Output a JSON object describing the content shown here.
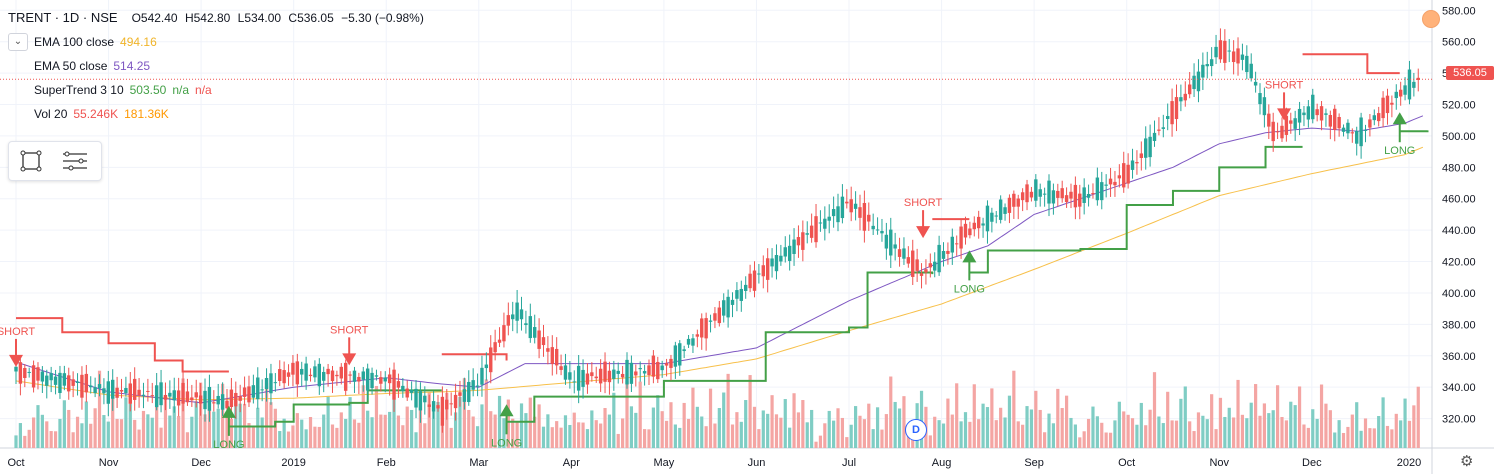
{
  "header": {
    "title": "TRENT · 1D · NSE",
    "ohlc": {
      "o": "O542.40",
      "h": "H542.80",
      "l": "L534.00",
      "c": "C536.05",
      "chg": "−5.30 (−0.98%)"
    }
  },
  "indicators": [
    {
      "label": "EMA 100 close",
      "value": "494.16",
      "color": "#f0b429"
    },
    {
      "label": "EMA 50 close",
      "value": "514.25",
      "color": "#7e57c2"
    },
    {
      "label": "SuperTrend 3 10",
      "value": "503.50",
      "value2": "n/a",
      "value3": "n/a",
      "color": "#43a047",
      "color2": "#ef5350"
    },
    {
      "label": "Vol 20",
      "value": "55.246K",
      "value2": "181.36K",
      "color": "#ef5350",
      "color2": "#ff9800"
    }
  ],
  "colors": {
    "up": "#26a69a",
    "down": "#ef5350",
    "ema100": "#f7c04a",
    "ema50": "#7e57c2",
    "st_up": "#43a047",
    "st_down": "#ef5350",
    "vol_up": "#7fcdc4",
    "vol_down": "#f4a5a3"
  },
  "last_price": "536.05",
  "event_marker": "D",
  "chart_data": {
    "type": "candlestick",
    "y_ticks": [
      "580.00",
      "560.00",
      "540.00",
      "520.00",
      "500.00",
      "480.00",
      "460.00",
      "440.00",
      "420.00",
      "400.00",
      "380.00",
      "360.00",
      "340.00",
      "320.00"
    ],
    "ylim": [
      300,
      584
    ],
    "x_labels": [
      "Oct",
      "Nov",
      "Dec",
      "2019",
      "Feb",
      "Mar",
      "Apr",
      "May",
      "Jun",
      "Jul",
      "Aug",
      "Sep",
      "Oct",
      "Nov",
      "Dec",
      "2020"
    ],
    "x_label_months": [
      0,
      1,
      2,
      3,
      4,
      5,
      6,
      7,
      8,
      9,
      10,
      11,
      12,
      13,
      14,
      15.05
    ],
    "signals": [
      {
        "type": "SHORT",
        "month": 0.0,
        "price": 358
      },
      {
        "type": "LONG",
        "month": 2.3,
        "price": 323
      },
      {
        "type": "SHORT",
        "month": 3.6,
        "price": 359
      },
      {
        "type": "LONG",
        "month": 5.3,
        "price": 324
      },
      {
        "type": "SHORT",
        "month": 9.8,
        "price": 440
      },
      {
        "type": "LONG",
        "month": 10.3,
        "price": 422
      },
      {
        "type": "SHORT",
        "month": 13.7,
        "price": 515
      },
      {
        "type": "LONG",
        "month": 14.95,
        "price": 510
      }
    ],
    "ohlc_key_points": [
      [
        0,
        350
      ],
      [
        1,
        338
      ],
      [
        2,
        333
      ],
      [
        2.3,
        330
      ],
      [
        3,
        350
      ],
      [
        4,
        345
      ],
      [
        4.6,
        325
      ],
      [
        5,
        343
      ],
      [
        5.4,
        390
      ],
      [
        6,
        345
      ],
      [
        7,
        352
      ],
      [
        8,
        410
      ],
      [
        9,
        458
      ],
      [
        9.8,
        412
      ],
      [
        10.3,
        440
      ],
      [
        11,
        465
      ],
      [
        11.5,
        460
      ],
      [
        12,
        475
      ],
      [
        12.5,
        515
      ],
      [
        13,
        555
      ],
      [
        13.3,
        548
      ],
      [
        13.6,
        500
      ],
      [
        14,
        518
      ],
      [
        14.5,
        500
      ],
      [
        15,
        530
      ],
      [
        15.15,
        536
      ]
    ],
    "ema50_key_points": [
      [
        0,
        356
      ],
      [
        1,
        337
      ],
      [
        2,
        330
      ],
      [
        3,
        340
      ],
      [
        4,
        346
      ],
      [
        4.6,
        342
      ],
      [
        5,
        340
      ],
      [
        5.5,
        355
      ],
      [
        6,
        355
      ],
      [
        7,
        355
      ],
      [
        8,
        365
      ],
      [
        9,
        395
      ],
      [
        10,
        420
      ],
      [
        10.5,
        430
      ],
      [
        11,
        450
      ],
      [
        12,
        470
      ],
      [
        12.5,
        480
      ],
      [
        13,
        495
      ],
      [
        13.5,
        502
      ],
      [
        14,
        505
      ],
      [
        14.5,
        503
      ],
      [
        15,
        508
      ],
      [
        15.25,
        514
      ]
    ],
    "ema100_key_points": [
      [
        0,
        344
      ],
      [
        1,
        335
      ],
      [
        2,
        332
      ],
      [
        3,
        333
      ],
      [
        4,
        336
      ],
      [
        4.6,
        337
      ],
      [
        5,
        338
      ],
      [
        6,
        343
      ],
      [
        7,
        348
      ],
      [
        8,
        358
      ],
      [
        9,
        376
      ],
      [
        10,
        393
      ],
      [
        11,
        415
      ],
      [
        12,
        438
      ],
      [
        12.5,
        450
      ],
      [
        13,
        462
      ],
      [
        14,
        476
      ],
      [
        15,
        488
      ],
      [
        15.25,
        494
      ]
    ],
    "supertrend": [
      {
        "dir": "down",
        "points": [
          [
            0,
            384
          ],
          [
            0.5,
            375
          ],
          [
            1,
            368
          ],
          [
            1.5,
            357
          ],
          [
            1.8,
            350
          ],
          [
            2.3,
            350
          ]
        ]
      },
      {
        "dir": "up",
        "points": [
          [
            2.3,
            315
          ],
          [
            2.8,
            318
          ],
          [
            3,
            329
          ],
          [
            3.6,
            330
          ],
          [
            3.8,
            338
          ],
          [
            4.6,
            338
          ]
        ]
      },
      {
        "dir": "down",
        "points": [
          [
            4.6,
            361
          ],
          [
            5.3,
            357
          ]
        ]
      },
      {
        "dir": "up",
        "points": [
          [
            5.3,
            318
          ],
          [
            5.6,
            334
          ],
          [
            6.5,
            334
          ],
          [
            7,
            344
          ],
          [
            8,
            344
          ],
          [
            8.1,
            375
          ],
          [
            9,
            378
          ],
          [
            9.2,
            413
          ],
          [
            9.9,
            412
          ]
        ]
      },
      {
        "dir": "down",
        "points": [
          [
            9.9,
            447
          ],
          [
            10.3,
            447
          ]
        ]
      },
      {
        "dir": "up",
        "points": [
          [
            10.3,
            413
          ],
          [
            10.5,
            427
          ],
          [
            11,
            427
          ],
          [
            11.5,
            428
          ],
          [
            12,
            456
          ],
          [
            12.5,
            465
          ],
          [
            13,
            480
          ],
          [
            13.5,
            493
          ],
          [
            13.9,
            493
          ]
        ]
      },
      {
        "dir": "down",
        "points": [
          [
            13.9,
            552
          ],
          [
            14.3,
            552
          ],
          [
            14.6,
            540
          ],
          [
            14.95,
            540
          ]
        ]
      },
      {
        "dir": "up",
        "points": [
          [
            14.95,
            503
          ],
          [
            15.25,
            503.5
          ]
        ]
      }
    ],
    "volume_note": "volume bars along bottom, relative heights 0-1",
    "volume_samples": [
      0.2,
      0.35,
      0.1,
      0.15,
      0.3,
      0.45,
      0.25,
      0.4,
      0.2,
      0.15,
      0.3,
      0.55,
      0.35,
      0.25,
      0.45,
      0.3,
      0.6,
      0.2,
      0.4,
      0.95,
      0.5,
      0.35,
      0.8,
      0.3,
      0.25,
      0.55,
      0.7,
      0.4,
      0.2,
      0.45,
      0.35,
      0.25,
      0.6,
      0.3,
      0.75,
      0.4,
      0.5,
      0.3,
      0.85,
      0.25,
      0.45,
      0.65,
      0.9,
      0.35,
      0.5,
      0.3,
      0.6,
      0.95,
      0.4,
      0.3,
      0.55,
      0.45,
      0.7,
      0.35,
      0.25,
      0.5,
      0.3,
      0.8,
      0.45,
      0.6
    ]
  }
}
